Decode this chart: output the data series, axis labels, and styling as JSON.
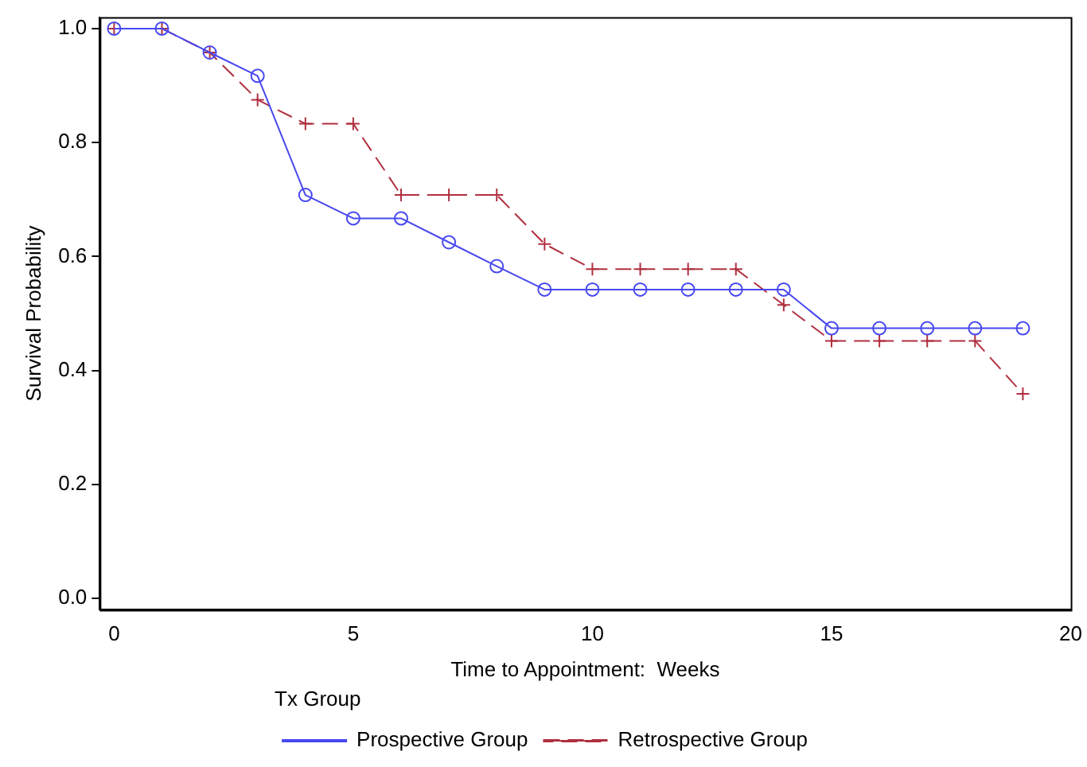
{
  "chart_data": {
    "type": "line",
    "xlabel": "Time to Appointment:  Weeks",
    "ylabel": "Survival Probability",
    "legend_title": "Tx Group",
    "legend": "bottom",
    "grid": false,
    "x": [
      0,
      1,
      2,
      3,
      4,
      5,
      6,
      7,
      8,
      9,
      10,
      11,
      12,
      13,
      14,
      15,
      16,
      17,
      18,
      19
    ],
    "xlim": [
      -0.3,
      20
    ],
    "xticks": [
      0,
      5,
      10,
      15,
      20
    ],
    "ylim": [
      -0.02,
      1.02
    ],
    "yticks": [
      {
        "value": 0,
        "label": "0.0"
      },
      {
        "value": 0.2,
        "label": "0.2"
      },
      {
        "value": 0.4,
        "label": "0.4"
      },
      {
        "value": 0.6,
        "label": "0.6"
      },
      {
        "value": 0.8,
        "label": "0.8"
      },
      {
        "value": 1,
        "label": "1.0"
      }
    ],
    "series": [
      {
        "name": "Prospective Group",
        "color": "#4848f0",
        "marker": "circle",
        "line_style": "solid",
        "values": [
          1,
          1,
          0.958,
          0.917,
          0.708,
          0.667,
          0.667,
          0.625,
          0.583,
          0.542,
          0.542,
          0.542,
          0.542,
          0.542,
          0.542,
          0.474,
          0.474,
          0.474,
          0.474,
          0.474
        ]
      },
      {
        "name": "Retrospective Group",
        "color": "#b03040",
        "marker": "cross",
        "line_style": "dashed",
        "values": [
          1,
          1,
          0.958,
          0.875,
          0.833,
          0.833,
          0.708,
          0.708,
          0.708,
          0.622,
          0.578,
          0.578,
          0.578,
          0.578,
          0.515,
          0.452,
          0.452,
          0.452,
          0.452,
          0.359
        ]
      }
    ]
  }
}
